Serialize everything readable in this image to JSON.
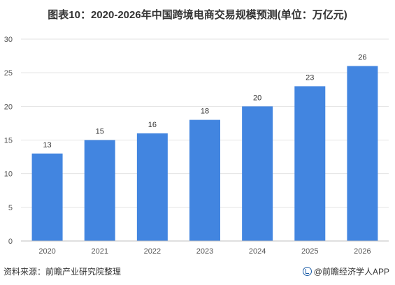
{
  "title": "图表10：2020-2026年中国跨境电商交易规模预测(单位：万亿元)",
  "footer": {
    "source": "资料来源：前瞻产业研究院整理",
    "brand": "@前瞻经济学人APP"
  },
  "colors": {
    "bar": "#4285e0",
    "grid": "#e3e3e3",
    "axis": "#bfbfbf"
  },
  "chart_data": {
    "type": "bar",
    "categories": [
      "2020",
      "2021",
      "2022",
      "2023",
      "2024",
      "2025",
      "2026"
    ],
    "values": [
      13,
      15,
      16,
      18,
      20,
      23,
      26
    ],
    "yticks": [
      0,
      5,
      10,
      15,
      20,
      25,
      30
    ],
    "ylim": [
      0,
      30
    ],
    "grid": true,
    "xlabel": "",
    "ylabel": ""
  }
}
